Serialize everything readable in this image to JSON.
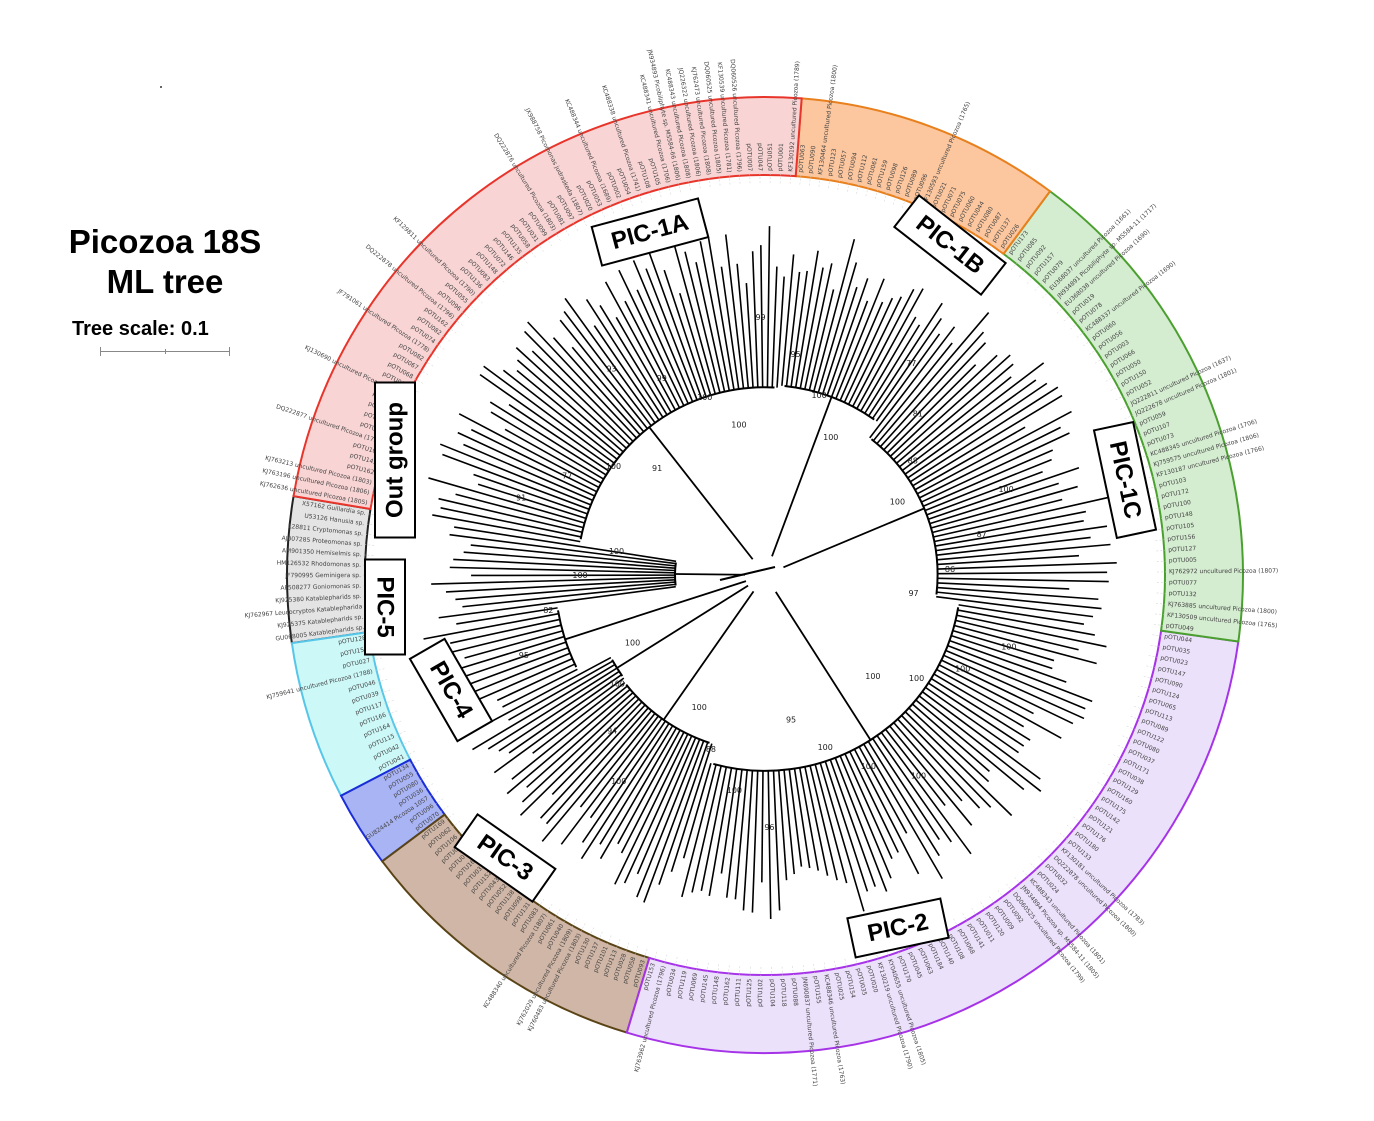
{
  "title_line1": "Picozoa 18S",
  "title_line2": "ML tree",
  "tree_scale_label": "Tree scale: 0.1",
  "clades": [
    {
      "id": "outgroup",
      "label": "Out group",
      "fill": "#e4e4e4",
      "stroke": "#222222",
      "leaves": [
        "X57162 Guillardia sp.",
        "U53126 Hanusia sp.",
        "L28811 Cryptomonas sp.",
        "AJ007285 Proteomonas sp.",
        "AM901350 Hemiselmis sp.",
        "HM126532 Rhodomonas sp.",
        "JF790995 Geminigera sp.",
        "AF508277 Goniomonas sp.",
        "KJ925380 Katablepharids sp.",
        "KJ762967 Leucocryptos Katablepharida",
        "KJ925375 Katablepharids sp.",
        "GU068005 Katablepharids sp."
      ]
    },
    {
      "id": "pic5",
      "label": "PIC-5",
      "fill": "#cdf8f8",
      "stroke": "#57c6e8",
      "leaves": [
        "pOTU128",
        "pOTU158",
        "pOTU027",
        "KJ759641 uncultured Picozoa (1788)",
        "pOTU046",
        "pOTU039",
        "pOTU117",
        "pOTU166",
        "pOTU164",
        "pOTU115",
        "pOTU042",
        "pOTU041"
      ]
    },
    {
      "id": "pic4",
      "label": "PIC-4",
      "fill": "#a9b4f5",
      "stroke": "#1a2dd8",
      "leaves": [
        "pOTU134",
        "pOTU055",
        "pOTU080",
        "pOTU036",
        "GU824414 Picozoa 1057",
        "pOTU096",
        "pOTU070"
      ]
    },
    {
      "id": "pic3",
      "label": "PIC-3",
      "fill": "#d0b6a6",
      "stroke": "#5a4416",
      "leaves": [
        "pOTU169",
        "pOTU062",
        "pOTU106",
        "pOTU076",
        "pOTU078",
        "pOTU161",
        "pOTU033",
        "pOTU152",
        "pOTU043",
        "pOTU052",
        "pOTU138",
        "pOTU098",
        "pOTU131",
        "pOTU083",
        "KC488340 uncultured Picozoa (1807)",
        "pOTU061",
        "pOTU040",
        "KJ762029 uncultured Picozoa (1809)",
        "KJ760483 uncultured Picozoa (1803)",
        "pOTU130",
        "pOTU137",
        "pOTU101",
        "pOTU113",
        "pOTU028",
        "pOTU058",
        "pOTU093"
      ]
    },
    {
      "id": "pic2",
      "label": "PIC-2",
      "fill": "#ece1fb",
      "stroke": "#a633e8",
      "leaves": [
        "pOTU153",
        "KJ763962 uncultured Picozoa (1796)",
        "pOTU034",
        "pOTU119",
        "pOTU069",
        "pOTU145",
        "pOTU148",
        "pOTU162",
        "pOTU111",
        "pOTU125",
        "pOTU102",
        "pOTU104",
        "pOTU118",
        "pOTU088",
        "JN690837 uncultured Picozoa (1771)",
        "pOTU155",
        "KC488346 uncultured Picozoa (1763)",
        "pOTU025",
        "pOTU154",
        "pOTU035",
        "pOTU020",
        "KF130219 uncultured Picozoa (1790)",
        "KY040655 uncultured Picozoa (1805)",
        "pOTU170",
        "pOTU045",
        "pOTU063",
        "pOTU184",
        "pOTU140",
        "pOTU108",
        "pOTU068",
        "pOTU141",
        "pOTU011",
        "pOTU120",
        "pOTU009",
        "pOTU092",
        "DQ060525 uncultured Picozoa (1799)",
        "JN934894 Picozoa sp. MS584-11 (1805)",
        "KC488343 uncultured Picozoa (1801)",
        "pOTU024",
        "pOTU032",
        "DQ222878 uncultured Picozoa (1800)",
        "KF130181 uncultured Picozoa (1783)",
        "pOTU133",
        "pOTU180",
        "pOTU176",
        "pOTU121",
        "pOTU142",
        "pOTU175",
        "pOTU160",
        "pOTU129",
        "pOTU038",
        "pOTU171",
        "pOTU037",
        "pOTU080",
        "pOTU122",
        "pOTU089",
        "pOTU113",
        "pOTU065",
        "pOTU124",
        "pOTU090",
        "pOTU147",
        "pOTU023",
        "pOTU035",
        "pOTU044"
      ]
    },
    {
      "id": "pic1c",
      "label": "PIC-1C",
      "fill": "#d4ecd0",
      "stroke": "#4aa02e",
      "leaves": [
        "pOTU049",
        "KF130509 uncultured Picozoa (1765)",
        "KJ763885 uncultured Picozoa (1800)",
        "pOTU132",
        "pOTU077",
        "KJ762972 uncultured Picozoa (1807)",
        "pOTU005",
        "pOTU127",
        "pOTU156",
        "pOTU105",
        "pOTU148",
        "pOTU100",
        "pOTU172",
        "pOTU103",
        "KF130187 uncultured Picozoa (1766)",
        "KJ759575 uncultured Picozoa (1806)",
        "KC488345 uncultured Picozoa (1706)",
        "pOTU073",
        "pOTU107",
        "pOTU059",
        "JQ222678 uncultured Picozoa (1801)",
        "JQ222811 uncultured Picozoa (1637)",
        "pOTU052",
        "pOTU150",
        "pOTU050",
        "pOTU066",
        "pOTU003",
        "pOTU056",
        "pOTU060",
        "KC488337 uncultured Picozoa (1690)",
        "pOTU078",
        "pOTU019",
        "EU368038 uncultured Picozoa (1690)",
        "JN934891 Picobiliphyte sp. MS584-11 (1717)",
        "EU368037 uncultured Picozoa (1661)",
        "pOTU079",
        "pOTU157",
        "pOTU092",
        "pOTU085",
        "pOTU173"
      ]
    },
    {
      "id": "pic1b",
      "label": "PIC-1B",
      "fill": "#fcc79f",
      "stroke": "#e8801d",
      "leaves": [
        "pOTU026",
        "pOTU137",
        "pOTU087",
        "pOTU080",
        "pOTU044",
        "pOTU060",
        "pOTU075",
        "pOTU071",
        "pOTU021",
        "KF130593 uncultured Picozoa (1765)",
        "pOTU096",
        "pOTU089",
        "pOTU126",
        "pOTU098",
        "pOTU159",
        "pOTU061",
        "pOTU112",
        "pOTU094",
        "pOTU057",
        "pOTU123",
        "KF130464 uncultured Picozoa (1800)",
        "pOTU090",
        "pOTU063"
      ]
    },
    {
      "id": "pic1a",
      "label": "PIC-1A",
      "fill": "#f8d4d4",
      "stroke": "#e8352b",
      "leaves": [
        "KF130192 uncultured Picozoa (1789)",
        "pOTU001",
        "pOTU051",
        "pOTU047",
        "pOTU007",
        "DQ060526 uncultured Picozoa (1796)",
        "KF130539 uncultured Picozoa (1781)",
        "DQ060525 uncultured Picozoa (1805)",
        "KJ762473 uncultured Picozoa (1808)",
        "JQ226322 uncultured Picozoa (1806)",
        "KC488343 uncultured Picozoa (1808)",
        "JN934893 Picobiliphyte sp. MS584-66 (1806)",
        "KC488341 uncultured Picozoa (1706)",
        "pOTU105",
        "pOTU108",
        "KC488338 uncultured Picozoa (1741)",
        "pOTU054",
        "pOTU002",
        "KC488344 uncultured Picozoa (1689)",
        "pOTU053",
        "pOTU020",
        "JX988758 Picomonas judraskeda (1807)",
        "pOTU097",
        "pOTU081",
        "DQ222876 uncultured Picozoa (1803)",
        "pOTU099",
        "pOTU031",
        "pOTU058",
        "pOTU135",
        "pOTU146",
        "pOTU072",
        "pOTU148",
        "pOTU083",
        "pOTU136",
        "KF129811 uncultured Picozoa (1790)",
        "pOTU055",
        "pOTU096",
        "DQ222878 uncultured Picozoa (1796)",
        "pOTU162",
        "pOTU082",
        "pOTU074",
        "JF791061 uncultured Picozoa (1778)",
        "pOTU082",
        "pOTU067",
        "pOTU068",
        "pOTU065",
        "KJ130690 uncultured Picozoa (1785)",
        "pOTU041",
        "pOTU084",
        "pOTU011",
        "pOTU010",
        "DQ222877 uncultured Picozoa (1798)",
        "pOTU102",
        "pOTU143",
        "pOTU162",
        "KJ763213 uncultured Picozoa (1803)",
        "KJ763196 uncultured Picozoa (1806)",
        "KJ762636 uncultured Picozoa (1805)"
      ]
    }
  ],
  "bootstrap_values": [
    "100",
    "100",
    "99",
    "93",
    "91",
    "100",
    "77",
    "91",
    "100",
    "100",
    "82",
    "95",
    "100",
    "100",
    "94",
    "100",
    "100",
    "88",
    "100",
    "96",
    "95",
    "100",
    "100",
    "100",
    "100",
    "100",
    "100",
    "100",
    "97",
    "86",
    "87",
    "100",
    "100",
    "88",
    "81",
    "77",
    "100",
    "100",
    "95",
    "99"
  ]
}
